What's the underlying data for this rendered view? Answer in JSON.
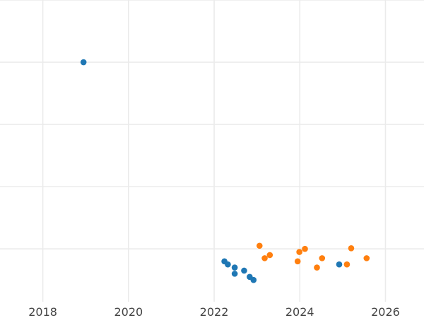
{
  "chart_data": {
    "type": "scatter",
    "title": "",
    "xlabel": "",
    "ylabel": "",
    "xlim": [
      2017.0,
      2026.9
    ],
    "ylim": [
      -1.85,
      3.0
    ],
    "grid": true,
    "legend": "none",
    "x_ticks": [
      2018,
      2020,
      2022,
      2024,
      2026
    ],
    "x_tick_labels": [
      "2018",
      "2020",
      "2022",
      "2024",
      "2026"
    ],
    "y_gridlines": [
      -1.0,
      0.0,
      1.0,
      2.0,
      3.0
    ],
    "grid_color": "#ebebeb",
    "series": [
      {
        "color": "#1f77b4",
        "points": [
          {
            "x": 2018.95,
            "y": 2.0
          },
          {
            "x": 2022.24,
            "y": -1.2
          },
          {
            "x": 2022.32,
            "y": -1.25
          },
          {
            "x": 2022.48,
            "y": -1.3
          },
          {
            "x": 2022.48,
            "y": -1.4
          },
          {
            "x": 2022.7,
            "y": -1.35
          },
          {
            "x": 2022.83,
            "y": -1.45
          },
          {
            "x": 2022.92,
            "y": -1.5
          },
          {
            "x": 2024.92,
            "y": -1.25
          }
        ]
      },
      {
        "color": "#ff7f0e",
        "points": [
          {
            "x": 2023.06,
            "y": -0.95
          },
          {
            "x": 2023.18,
            "y": -1.15
          },
          {
            "x": 2023.3,
            "y": -1.1
          },
          {
            "x": 2023.95,
            "y": -1.2
          },
          {
            "x": 2023.99,
            "y": -1.05
          },
          {
            "x": 2024.12,
            "y": -1.0
          },
          {
            "x": 2024.4,
            "y": -1.3
          },
          {
            "x": 2024.52,
            "y": -1.15
          },
          {
            "x": 2025.1,
            "y": -1.25
          },
          {
            "x": 2025.2,
            "y": -0.99
          },
          {
            "x": 2025.56,
            "y": -1.15
          }
        ]
      }
    ]
  }
}
